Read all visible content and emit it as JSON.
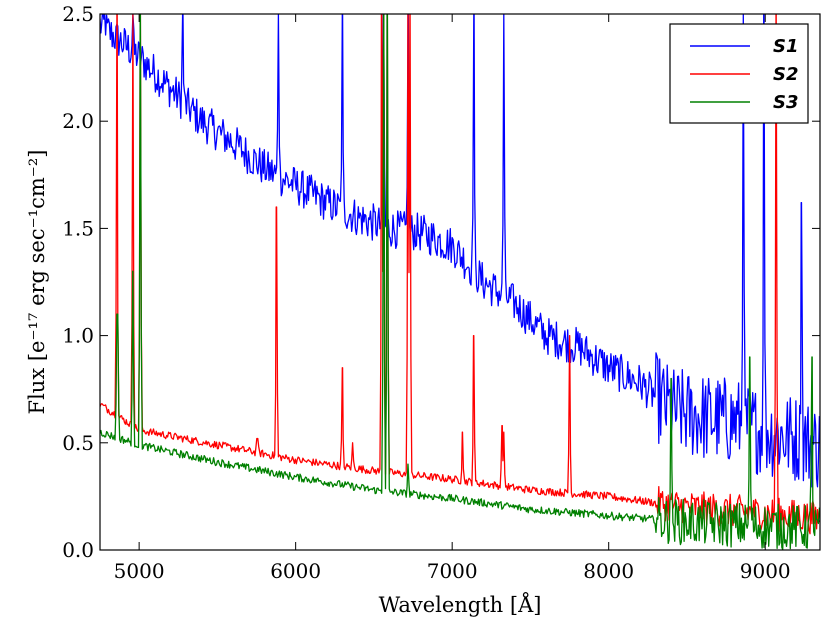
{
  "chart_data": {
    "type": "line",
    "title": "",
    "xlabel": "Wavelength [Å]",
    "ylabel": "Flux [e⁻¹⁷ erg sec⁻¹cm⁻²]",
    "xlim": [
      4750,
      9350
    ],
    "ylim": [
      0.0,
      2.5
    ],
    "xticks": [
      5000,
      6000,
      7000,
      8000,
      9000
    ],
    "yticks": [
      0.0,
      0.5,
      1.0,
      1.5,
      2.0,
      2.5
    ],
    "xtick_labels": [
      "5000",
      "6000",
      "7000",
      "8000",
      "9000"
    ],
    "ytick_labels": [
      "0.0",
      "0.5",
      "1.0",
      "1.5",
      "2.0",
      "2.5"
    ],
    "grid": false,
    "legend_position": "top-right",
    "series": [
      {
        "name": "S1",
        "color": "#0000ff",
        "x": [
          4750,
          5000,
          5200,
          5400,
          5600,
          5800,
          6000,
          6200,
          6400,
          6600,
          6800,
          7000,
          7200,
          7400,
          7600,
          7800,
          8000,
          8200,
          8400,
          8600,
          8800,
          9000,
          9200,
          9350
        ],
        "y": [
          2.45,
          2.3,
          2.15,
          2.0,
          1.9,
          1.78,
          1.7,
          1.62,
          1.55,
          1.5,
          1.48,
          1.42,
          1.25,
          1.15,
          1.0,
          0.95,
          0.85,
          0.78,
          0.65,
          0.62,
          0.6,
          0.55,
          0.52,
          0.48
        ],
        "peaks": [
          [
            4780,
            2.5
          ],
          [
            4960,
            2.5
          ],
          [
            5280,
            2.5
          ],
          [
            5890,
            2.5
          ],
          [
            6300,
            2.5
          ],
          [
            6560,
            2.5
          ],
          [
            6720,
            2.5
          ],
          [
            7140,
            2.5
          ],
          [
            7330,
            2.5
          ],
          [
            8860,
            2.5
          ],
          [
            8990,
            2.5
          ],
          [
            9230,
            1.62
          ]
        ]
      },
      {
        "name": "S2",
        "color": "#ff0000",
        "x": [
          4750,
          5000,
          5500,
          6000,
          6500,
          7000,
          7500,
          8000,
          8500,
          9000,
          9350
        ],
        "y": [
          0.68,
          0.56,
          0.49,
          0.42,
          0.37,
          0.33,
          0.28,
          0.25,
          0.2,
          0.17,
          0.15
        ],
        "peaks": [
          [
            4860,
            2.5
          ],
          [
            4960,
            2.5
          ],
          [
            5007,
            2.5
          ],
          [
            5755,
            0.52
          ],
          [
            5876,
            1.6
          ],
          [
            6300,
            0.85
          ],
          [
            6364,
            0.5
          ],
          [
            6548,
            2.5
          ],
          [
            6563,
            2.5
          ],
          [
            6584,
            2.5
          ],
          [
            6717,
            2.5
          ],
          [
            6731,
            2.5
          ],
          [
            7065,
            0.55
          ],
          [
            7136,
            1.0
          ],
          [
            7320,
            0.58
          ],
          [
            7330,
            0.55
          ],
          [
            7751,
            1.0
          ],
          [
            9069,
            2.5
          ]
        ]
      },
      {
        "name": "S3",
        "color": "#008000",
        "x": [
          4750,
          5000,
          5500,
          6000,
          6500,
          7000,
          7500,
          8000,
          8500,
          9000,
          9350
        ],
        "y": [
          0.55,
          0.49,
          0.41,
          0.34,
          0.28,
          0.24,
          0.19,
          0.16,
          0.13,
          0.11,
          0.1
        ],
        "peaks": [
          [
            4861,
            1.1
          ],
          [
            4959,
            1.3
          ],
          [
            5007,
            2.5
          ],
          [
            6563,
            2.5
          ],
          [
            6584,
            2.5
          ],
          [
            6717,
            0.4
          ],
          [
            8400,
            0.8
          ],
          [
            8900,
            0.9
          ],
          [
            9300,
            0.9
          ]
        ]
      }
    ]
  }
}
